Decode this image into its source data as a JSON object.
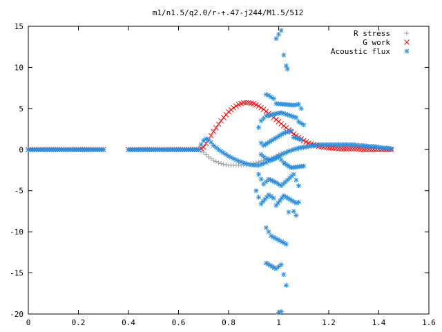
{
  "chart_data": {
    "type": "scatter",
    "title": "m1/n1.5/q2.0/r-+.47-j244/M1.5/512",
    "xlabel": "",
    "ylabel": "",
    "xlim": [
      0,
      1.6
    ],
    "ylim": [
      -20,
      15
    ],
    "x_ticks": [
      "0",
      "0.2",
      "0.4",
      "0.6",
      "0.8",
      "1",
      "1.2",
      "1.4",
      "1.6"
    ],
    "y_ticks": [
      "15",
      "10",
      "5",
      "0",
      "-5",
      "-10",
      "-15",
      "-20"
    ],
    "grid": false,
    "legend_position": "top-right",
    "series": [
      {
        "name": "R stress",
        "marker": "plus",
        "color": "#a0a0a0",
        "points": [
          [
            0.0,
            0
          ],
          [
            0.1,
            0
          ],
          [
            0.2,
            0
          ],
          [
            0.3,
            0
          ],
          [
            0.4,
            0
          ],
          [
            0.5,
            0
          ],
          [
            0.6,
            0
          ],
          [
            0.68,
            0
          ],
          [
            0.7,
            -0.3
          ],
          [
            0.72,
            -0.9
          ],
          [
            0.74,
            -1.3
          ],
          [
            0.76,
            -1.6
          ],
          [
            0.78,
            -1.8
          ],
          [
            0.8,
            -1.9
          ],
          [
            0.82,
            -1.9
          ],
          [
            0.84,
            -1.9
          ],
          [
            0.86,
            -1.9
          ],
          [
            0.88,
            -1.8
          ],
          [
            0.9,
            -1.7
          ],
          [
            0.92,
            -1.5
          ],
          [
            0.94,
            -1.3
          ],
          [
            0.96,
            -1.1
          ],
          [
            0.98,
            -0.9
          ],
          [
            1.0,
            -0.6
          ],
          [
            1.02,
            -0.4
          ],
          [
            1.04,
            -0.2
          ],
          [
            1.06,
            0.0
          ],
          [
            1.08,
            0.1
          ],
          [
            1.1,
            0.2
          ],
          [
            1.12,
            0.3
          ],
          [
            1.14,
            0.4
          ],
          [
            1.16,
            0.5
          ],
          [
            1.18,
            0.5
          ],
          [
            1.2,
            0.5
          ],
          [
            1.22,
            0.5
          ],
          [
            1.24,
            0.5
          ],
          [
            1.26,
            0.5
          ],
          [
            1.28,
            0.5
          ],
          [
            1.3,
            0.4
          ],
          [
            1.32,
            0.4
          ],
          [
            1.34,
            0.3
          ],
          [
            1.36,
            0.3
          ],
          [
            1.38,
            0.2
          ],
          [
            1.4,
            0.2
          ],
          [
            1.42,
            0.1
          ],
          [
            1.44,
            0.1
          ],
          [
            1.45,
            0.0
          ]
        ]
      },
      {
        "name": "G work",
        "marker": "cross",
        "color": "#ff0000",
        "points": [
          [
            0.0,
            0
          ],
          [
            0.1,
            0
          ],
          [
            0.2,
            0
          ],
          [
            0.3,
            0
          ],
          [
            0.4,
            0
          ],
          [
            0.5,
            0
          ],
          [
            0.6,
            0
          ],
          [
            0.68,
            0
          ],
          [
            0.7,
            0.3
          ],
          [
            0.72,
            1.2
          ],
          [
            0.74,
            2.2
          ],
          [
            0.76,
            3.1
          ],
          [
            0.78,
            3.9
          ],
          [
            0.8,
            4.6
          ],
          [
            0.82,
            5.1
          ],
          [
            0.84,
            5.5
          ],
          [
            0.86,
            5.7
          ],
          [
            0.88,
            5.7
          ],
          [
            0.9,
            5.6
          ],
          [
            0.92,
            5.3
          ],
          [
            0.94,
            4.9
          ],
          [
            0.96,
            4.4
          ],
          [
            0.98,
            3.9
          ],
          [
            1.0,
            3.4
          ],
          [
            1.02,
            2.9
          ],
          [
            1.04,
            2.4
          ],
          [
            1.06,
            1.9
          ],
          [
            1.08,
            1.5
          ],
          [
            1.1,
            1.1
          ],
          [
            1.12,
            0.8
          ],
          [
            1.14,
            0.6
          ],
          [
            1.16,
            0.4
          ],
          [
            1.18,
            0.3
          ],
          [
            1.2,
            0.2
          ],
          [
            1.22,
            0.2
          ],
          [
            1.24,
            0.1
          ],
          [
            1.26,
            0.1
          ],
          [
            1.28,
            0.1
          ],
          [
            1.3,
            0.1
          ],
          [
            1.32,
            0.1
          ],
          [
            1.34,
            0.0
          ],
          [
            1.36,
            0.0
          ],
          [
            1.38,
            0.0
          ],
          [
            1.4,
            0.0
          ],
          [
            1.42,
            0.0
          ],
          [
            1.44,
            0.0
          ],
          [
            1.45,
            0.0
          ]
        ]
      },
      {
        "name": "Acoustic flux",
        "marker": "star",
        "color": "#2a8fe0",
        "points": [
          [
            0.0,
            0
          ],
          [
            0.1,
            0
          ],
          [
            0.2,
            0
          ],
          [
            0.3,
            0
          ],
          [
            0.4,
            0
          ],
          [
            0.5,
            0
          ],
          [
            0.6,
            0
          ],
          [
            0.68,
            0
          ],
          [
            0.69,
            0.6
          ],
          [
            0.7,
            1.1
          ],
          [
            0.71,
            1.3
          ],
          [
            0.72,
            1.2
          ],
          [
            0.73,
            0.9
          ],
          [
            0.74,
            0.5
          ],
          [
            0.76,
            0.0
          ],
          [
            0.78,
            -0.4
          ],
          [
            0.8,
            -0.8
          ],
          [
            0.82,
            -1.1
          ],
          [
            0.84,
            -1.4
          ],
          [
            0.86,
            -1.6
          ],
          [
            0.88,
            -1.8
          ],
          [
            0.9,
            -1.9
          ],
          [
            0.92,
            -1.9
          ],
          [
            0.94,
            -1.7
          ],
          [
            0.96,
            -1.4
          ],
          [
            0.98,
            -1.1
          ],
          [
            1.0,
            -0.8
          ],
          [
            1.02,
            -0.5
          ],
          [
            1.04,
            -0.2
          ],
          [
            1.06,
            0.0
          ],
          [
            1.08,
            0.2
          ],
          [
            1.1,
            0.3
          ],
          [
            1.12,
            0.4
          ],
          [
            1.14,
            0.5
          ],
          [
            1.16,
            0.6
          ],
          [
            1.18,
            0.6
          ],
          [
            1.2,
            0.6
          ],
          [
            1.22,
            0.6
          ],
          [
            1.24,
            0.6
          ],
          [
            1.26,
            0.6
          ],
          [
            1.28,
            0.6
          ],
          [
            1.3,
            0.6
          ],
          [
            1.32,
            0.5
          ],
          [
            1.34,
            0.5
          ],
          [
            1.36,
            0.4
          ],
          [
            1.38,
            0.4
          ],
          [
            1.4,
            0.3
          ],
          [
            1.42,
            0.2
          ],
          [
            1.44,
            0.2
          ],
          [
            1.45,
            0.1
          ],
          [
            0.99,
            13.5
          ],
          [
            1.01,
            14.5
          ],
          [
            1.02,
            11.5
          ],
          [
            1.03,
            10.2
          ],
          [
            1.035,
            9.8
          ],
          [
            0.95,
            6.7
          ],
          [
            0.96,
            6.6
          ],
          [
            0.98,
            6.2
          ],
          [
            0.99,
            5.6
          ],
          [
            1.06,
            5.4
          ],
          [
            1.08,
            5.5
          ],
          [
            1.09,
            5.0
          ],
          [
            0.93,
            3.5
          ],
          [
            0.95,
            4.1
          ],
          [
            1.01,
            4.5
          ],
          [
            1.07,
            3.9
          ],
          [
            1.08,
            3.4
          ],
          [
            1.1,
            3.0
          ],
          [
            0.92,
            2.7
          ],
          [
            0.93,
            0.8
          ],
          [
            0.94,
            0.5
          ],
          [
            1.02,
            2.0
          ],
          [
            1.05,
            2.3
          ],
          [
            1.06,
            1.5
          ],
          [
            1.09,
            1.2
          ],
          [
            0.93,
            -0.6
          ],
          [
            0.95,
            -1.1
          ],
          [
            0.97,
            -1.3
          ],
          [
            1.0,
            -0.9
          ],
          [
            1.02,
            -1.6
          ],
          [
            1.05,
            -2.2
          ],
          [
            1.1,
            -2.0
          ],
          [
            0.92,
            -3.0
          ],
          [
            0.94,
            -4.2
          ],
          [
            0.96,
            -3.6
          ],
          [
            0.99,
            -4.0
          ],
          [
            1.01,
            -4.4
          ],
          [
            1.06,
            -3.0
          ],
          [
            1.08,
            -4.4
          ],
          [
            0.91,
            -5.0
          ],
          [
            0.93,
            -6.6
          ],
          [
            0.96,
            -5.5
          ],
          [
            0.98,
            -5.9
          ],
          [
            0.99,
            -6.8
          ],
          [
            1.02,
            -5.6
          ],
          [
            1.07,
            -6.5
          ],
          [
            1.08,
            -6.4
          ],
          [
            1.06,
            -7.5
          ],
          [
            1.07,
            -8.0
          ],
          [
            1.04,
            -7.6
          ],
          [
            0.95,
            -9.5
          ],
          [
            0.97,
            -10.5
          ],
          [
            1.03,
            -11.5
          ],
          [
            0.95,
            -13.8
          ],
          [
            0.99,
            -14.5
          ],
          [
            1.01,
            -14.0
          ],
          [
            1.02,
            -15.2
          ],
          [
            1.03,
            -16.5
          ],
          [
            1.0,
            -19.8
          ],
          [
            1.01,
            -19.7
          ]
        ]
      }
    ]
  }
}
